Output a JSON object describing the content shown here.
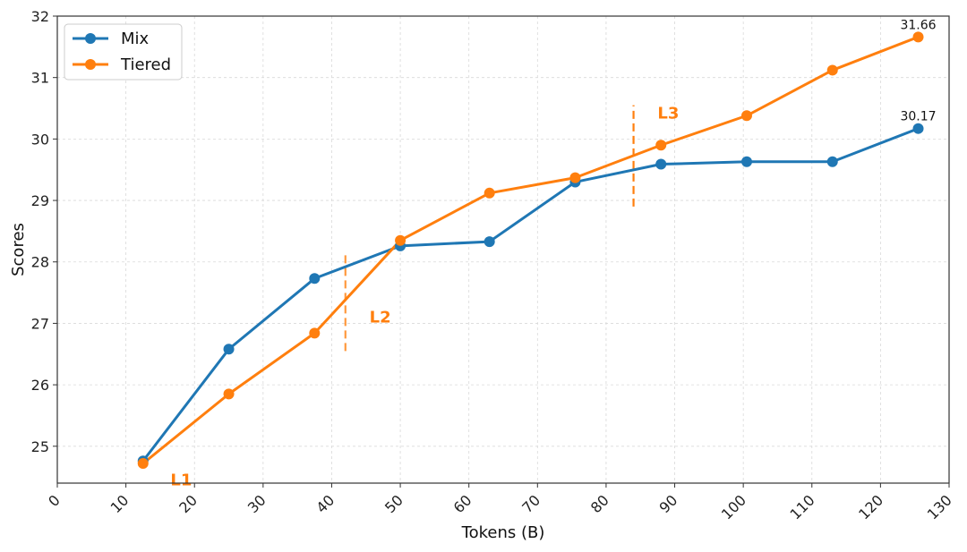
{
  "chart_data": {
    "type": "line",
    "title": "",
    "xlabel": "Tokens (B)",
    "ylabel": "Scores",
    "xlim": [
      0,
      130
    ],
    "ylim": [
      24.4,
      32
    ],
    "xticks": [
      0,
      10,
      20,
      30,
      40,
      50,
      60,
      70,
      80,
      90,
      100,
      110,
      120,
      130
    ],
    "yticks": [
      25,
      26,
      27,
      28,
      29,
      30,
      31,
      32
    ],
    "grid": true,
    "legend_position": "top-left",
    "series": [
      {
        "name": "Mix",
        "color": "#1f77b4",
        "x": [
          12.5,
          25,
          37.5,
          50,
          63,
          75.5,
          88,
          100.5,
          113,
          125.5
        ],
        "y": [
          24.76,
          26.58,
          27.73,
          28.26,
          28.33,
          29.3,
          29.59,
          29.63,
          29.63,
          30.17
        ]
      },
      {
        "name": "Tiered",
        "color": "#ff7f0e",
        "x": [
          12.5,
          25,
          37.5,
          50,
          63,
          75.5,
          88,
          100.5,
          113,
          125.5
        ],
        "y": [
          24.72,
          25.85,
          26.84,
          28.35,
          29.12,
          29.37,
          29.9,
          30.38,
          31.12,
          31.66
        ]
      }
    ],
    "end_labels": [
      {
        "series": "Tiered",
        "text": "31.66"
      },
      {
        "series": "Mix",
        "text": "30.17"
      }
    ],
    "stage_markers": [
      {
        "label": "L1",
        "x": 12.5,
        "label_x": 16.5,
        "label_y": 24.45,
        "line": false
      },
      {
        "label": "L2",
        "x": 42,
        "y_range": [
          26.55,
          28.15
        ],
        "label_x": 45.5,
        "label_y": 27.1,
        "line": true
      },
      {
        "label": "L3",
        "x": 84,
        "y_range": [
          28.9,
          30.55
        ],
        "label_x": 87.5,
        "label_y": 30.42,
        "line": true
      }
    ],
    "marker_color": "#ff7f0e"
  }
}
